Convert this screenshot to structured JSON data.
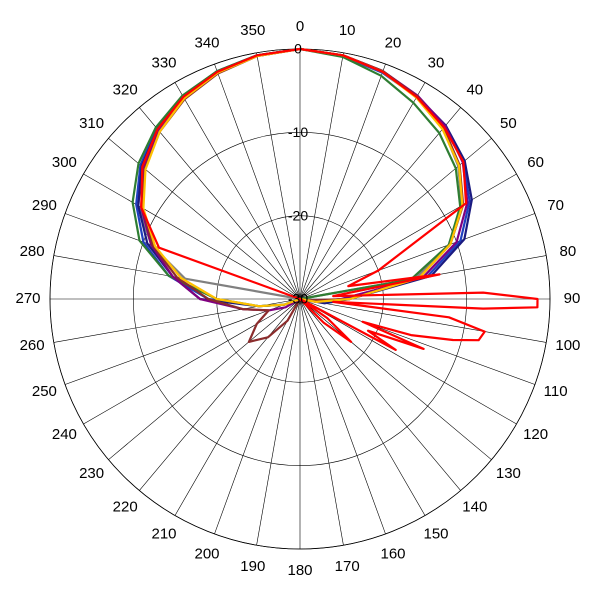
{
  "chart_data": {
    "type": "polar-line",
    "title": "",
    "angle_ticks": [
      "0",
      "10",
      "20",
      "30",
      "40",
      "50",
      "60",
      "70",
      "80",
      "90",
      "100",
      "110",
      "120",
      "130",
      "140",
      "150",
      "160",
      "170",
      "180",
      "190",
      "200",
      "210",
      "220",
      "230",
      "240",
      "250",
      "260",
      "270",
      "280",
      "290",
      "300",
      "310",
      "320",
      "330",
      "340",
      "350"
    ],
    "angle_tick_step_deg": 10,
    "radial_ticks": [
      "0",
      "-10",
      "-20",
      "-30"
    ],
    "radial_range": [
      -30,
      0
    ],
    "grid": true,
    "legend": "none",
    "series": [
      {
        "color": "#808080",
        "angles": [
          0,
          10,
          20,
          30,
          40,
          50,
          60,
          70,
          80,
          90,
          100,
          110,
          120,
          180,
          240,
          250,
          260,
          270,
          280,
          290,
          300,
          310,
          320,
          330,
          340,
          350
        ],
        "values": [
          0,
          -0.3,
          -0.9,
          -1.9,
          -3.3,
          -5.2,
          -7.6,
          -11.0,
          -16.0,
          -30,
          -30,
          -30,
          -30,
          -30,
          -30,
          -30,
          -30,
          -30,
          -16.0,
          -11.0,
          -7.6,
          -5.2,
          -3.3,
          -1.9,
          -0.9,
          -0.3
        ]
      },
      {
        "color": "#1f3fbf",
        "angles": [
          0,
          10,
          20,
          30,
          40,
          50,
          60,
          70,
          80,
          90,
          100,
          110,
          240,
          250,
          260,
          270,
          280,
          290,
          300,
          310,
          320,
          330,
          340,
          350
        ],
        "values": [
          0,
          -0.4,
          -1.1,
          -2.0,
          -3.0,
          -4.4,
          -6.5,
          -9.5,
          -14.5,
          -25,
          -28,
          -30,
          -30,
          -28,
          -25,
          -19,
          -14.0,
          -10.0,
          -7.3,
          -5.0,
          -3.3,
          -1.9,
          -0.9,
          -0.3
        ]
      },
      {
        "color": "#1a1a80",
        "angles": [
          0,
          10,
          20,
          30,
          40,
          50,
          60,
          70,
          80,
          90,
          100,
          110,
          240,
          250,
          260,
          270,
          280,
          290,
          300,
          310,
          320,
          330,
          340,
          350
        ],
        "values": [
          0,
          -0.3,
          -1.0,
          -1.9,
          -2.8,
          -4.2,
          -6.2,
          -9.0,
          -14.0,
          -24,
          -27,
          -30,
          -30,
          -28,
          -25,
          -18,
          -14.5,
          -10.5,
          -7.6,
          -5.2,
          -3.4,
          -2.0,
          -1.0,
          -0.3
        ]
      },
      {
        "color": "#2e7d32",
        "angles": [
          0,
          10,
          20,
          30,
          40,
          50,
          60,
          70,
          80,
          90,
          240,
          250,
          260,
          270,
          280,
          290,
          300,
          310,
          320,
          330,
          340,
          350
        ],
        "values": [
          0,
          -0.5,
          -1.5,
          -2.8,
          -4.0,
          -5.6,
          -7.8,
          -11.0,
          -16.5,
          -30,
          -30,
          -28,
          -25,
          -20,
          -14.0,
          -9.5,
          -6.8,
          -4.7,
          -3.1,
          -1.8,
          -0.9,
          -0.3
        ]
      },
      {
        "color": "#800080",
        "angles": [
          0,
          10,
          20,
          30,
          40,
          50,
          60,
          70,
          80,
          90,
          100,
          110,
          230,
          240,
          250,
          260,
          270,
          280,
          290,
          300,
          310,
          320,
          330,
          340,
          350
        ],
        "values": [
          0,
          -0.3,
          -0.9,
          -1.8,
          -2.9,
          -4.5,
          -6.8,
          -10.0,
          -15.0,
          -25,
          -28,
          -30,
          -30,
          -28,
          -26,
          -23,
          -18,
          -14.5,
          -11.0,
          -8.0,
          -5.5,
          -3.6,
          -2.2,
          -1.1,
          -0.4
        ]
      },
      {
        "color": "#8b2c2c",
        "angles": [
          0,
          10,
          20,
          30,
          40,
          50,
          60,
          70,
          80,
          90,
          100,
          200,
          210,
          220,
          230,
          240,
          250,
          260,
          270,
          280,
          290,
          300,
          310,
          320,
          330,
          340,
          350
        ],
        "values": [
          0,
          -0.3,
          -0.9,
          -1.9,
          -3.2,
          -5.0,
          -7.4,
          -10.8,
          -15.5,
          -24,
          -29,
          -30,
          -27,
          -24,
          -22,
          -24,
          -26,
          -23,
          -19,
          -15.0,
          -11.2,
          -8.2,
          -5.7,
          -3.8,
          -2.3,
          -1.2,
          -0.4
        ]
      },
      {
        "color": "#ffc000",
        "angles": [
          0,
          10,
          20,
          30,
          40,
          50,
          60,
          70,
          80,
          90,
          100,
          110,
          120,
          240,
          250,
          260,
          270,
          280,
          290,
          300,
          310,
          320,
          330,
          340,
          350
        ],
        "values": [
          0,
          -0.3,
          -1.0,
          -2.1,
          -3.4,
          -5.1,
          -7.5,
          -10.8,
          -15.5,
          -24,
          -28,
          -30,
          -30,
          -30,
          -28,
          -25,
          -20,
          -15.5,
          -11.5,
          -8.3,
          -5.8,
          -3.8,
          -2.2,
          -1.1,
          -0.4
        ]
      },
      {
        "color": "#ff0000",
        "angles": [
          0,
          10,
          20,
          30,
          40,
          50,
          60,
          70,
          75,
          80,
          85,
          88,
          90,
          92,
          93,
          95,
          97,
          100,
          103,
          105,
          108,
          110,
          112,
          115,
          118,
          120,
          125,
          130,
          135,
          140,
          145,
          150,
          155,
          160,
          165,
          170,
          180,
          240,
          250,
          260,
          270,
          280,
          290,
          300,
          310,
          320,
          330,
          340,
          350
        ],
        "values": [
          0,
          -0.3,
          -1.0,
          -2.0,
          -3.1,
          -4.4,
          -7.0,
          -20,
          -24,
          -13,
          -26,
          -8,
          -1.5,
          -1.5,
          -8,
          -26,
          -12,
          -7.5,
          -8,
          -11,
          -16,
          -22,
          -14,
          -21,
          -17,
          -30,
          -26,
          -22,
          -26,
          -30,
          -30,
          -30,
          -30,
          -30,
          -30,
          -30,
          -30,
          -30,
          -30,
          -30,
          -30,
          -30,
          -12.0,
          -8.0,
          -5.3,
          -3.4,
          -2.0,
          -1.0,
          -0.3
        ]
      }
    ]
  }
}
